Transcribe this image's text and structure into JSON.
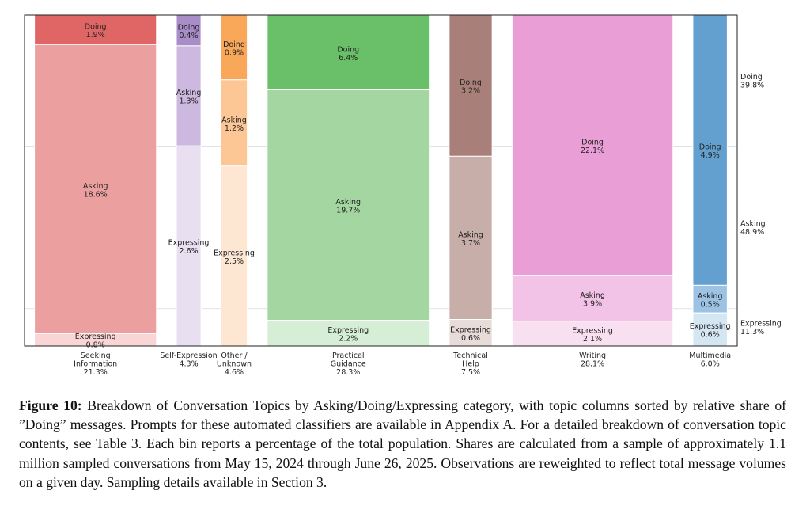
{
  "chart_data": {
    "type": "mosaic",
    "categories": [
      {
        "name": "Seeking\nInformation",
        "share": "21.3%",
        "width": 21.3,
        "segments": [
          {
            "label": "Doing",
            "value": 1.9,
            "text": "1.9%",
            "color": "#e06666"
          },
          {
            "label": "Asking",
            "value": 18.6,
            "text": "18.6%",
            "color": "#eba09f"
          },
          {
            "label": "Expressing",
            "value": 0.8,
            "text": "0.8%",
            "color": "#f9d6d5"
          }
        ]
      },
      {
        "name": "Self-Expression",
        "share": "4.3%",
        "width": 4.3,
        "segments": [
          {
            "label": "Doing",
            "value": 0.4,
            "text": "0.4%",
            "color": "#a98dc9"
          },
          {
            "label": "Asking",
            "value": 1.3,
            "text": "1.3%",
            "color": "#cdb9e0"
          },
          {
            "label": "Expressing",
            "value": 2.6,
            "text": "2.6%",
            "color": "#e8e0f0"
          }
        ]
      },
      {
        "name": "Other /\nUnknown",
        "share": "4.6%",
        "width": 4.6,
        "segments": [
          {
            "label": "Doing",
            "value": 0.9,
            "text": "0.9%",
            "color": "#f9a85a"
          },
          {
            "label": "Asking",
            "value": 1.2,
            "text": "1.2%",
            "color": "#fcc795"
          },
          {
            "label": "Expressing",
            "value": 2.5,
            "text": "2.5%",
            "color": "#fde6d2"
          }
        ]
      },
      {
        "name": "Practical\nGuidance",
        "share": "28.3%",
        "width": 28.3,
        "segments": [
          {
            "label": "Doing",
            "value": 6.4,
            "text": "6.4%",
            "color": "#6abf69"
          },
          {
            "label": "Asking",
            "value": 19.7,
            "text": "19.7%",
            "color": "#a3d6a0"
          },
          {
            "label": "Expressing",
            "value": 2.2,
            "text": "2.2%",
            "color": "#d6eed5"
          }
        ]
      },
      {
        "name": "Technical\nHelp",
        "share": "7.5%",
        "width": 7.5,
        "segments": [
          {
            "label": "Doing",
            "value": 3.2,
            "text": "3.2%",
            "color": "#a88079"
          },
          {
            "label": "Asking",
            "value": 3.7,
            "text": "3.7%",
            "color": "#c8aea8"
          },
          {
            "label": "Expressing",
            "value": 0.6,
            "text": "0.6%",
            "color": "#e8dcd9"
          }
        ]
      },
      {
        "name": "Writing",
        "share": "28.1%",
        "width": 28.1,
        "segments": [
          {
            "label": "Doing",
            "value": 22.1,
            "text": "22.1%",
            "color": "#ea9ed6"
          },
          {
            "label": "Asking",
            "value": 3.9,
            "text": "3.9%",
            "color": "#f2c3e6"
          },
          {
            "label": "Expressing",
            "value": 2.1,
            "text": "2.1%",
            "color": "#f8e0f1"
          }
        ]
      },
      {
        "name": "Multimedia",
        "share": "6.0%",
        "width": 6.0,
        "segments": [
          {
            "label": "Doing",
            "value": 4.9,
            "text": "4.9%",
            "color": "#64a0cf"
          },
          {
            "label": "Asking",
            "value": 0.5,
            "text": "0.5%",
            "color": "#9cc3e3"
          },
          {
            "label": "Expressing",
            "value": 0.6,
            "text": "0.6%",
            "color": "#d5e6f3"
          }
        ]
      }
    ],
    "overall": [
      {
        "label": "Doing",
        "value": 39.8,
        "text": "39.8%"
      },
      {
        "label": "Asking",
        "value": 48.9,
        "text": "48.9%"
      },
      {
        "label": "Expressing",
        "value": 11.3,
        "text": "11.3%"
      }
    ]
  },
  "caption": {
    "label": "Figure 10:",
    "text": " Breakdown of Conversation Topics by Asking/Doing/Expressing category, with topic columns sorted by relative share of ”Doing” messages. Prompts for these automated classifiers are available in Appendix A. For a detailed breakdown of conversation topic contents, see Table 3. Each bin reports a percentage of the total population. Shares are calculated from a sample of approximately 1.1 million sampled conversations from May 15, 2024 through June 26, 2025. Observations are reweighted to reflect total message volumes on a given day. Sampling details available in Section 3."
  }
}
